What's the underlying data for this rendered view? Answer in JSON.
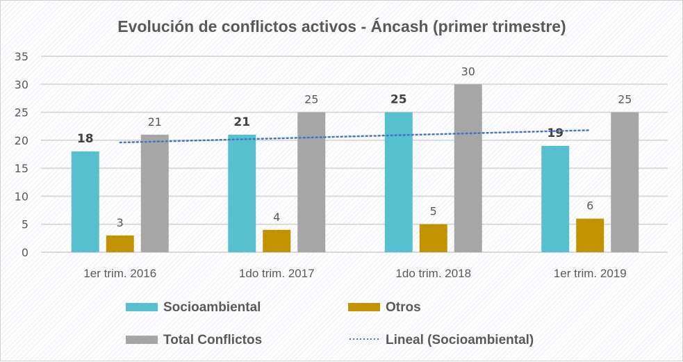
{
  "chart_data": {
    "type": "bar",
    "title": "Evolución de conflictos activos - Áncash (primer trimestre)",
    "xlabel": "",
    "ylabel": "",
    "ylim": [
      0,
      35
    ],
    "yticks": [
      0,
      5,
      10,
      15,
      20,
      25,
      30,
      35
    ],
    "grid": true,
    "categories": [
      "1er trim. 2016",
      "1do trim. 2017",
      "1do trim. 2018",
      "1er trim. 2019"
    ],
    "series": [
      {
        "name": "Socioambiental",
        "color": "#56C0CE",
        "values": [
          18,
          21,
          25,
          19
        ],
        "label_style": "bold"
      },
      {
        "name": "Otros",
        "color": "#C39200",
        "values": [
          3,
          4,
          5,
          6
        ],
        "label_style": "normal"
      },
      {
        "name": "Total Conflictos",
        "color": "#A6A6A6",
        "values": [
          21,
          25,
          30,
          25
        ],
        "label_style": "normal"
      }
    ],
    "trendline": {
      "name": "Lineal (Socioambiental)",
      "type": "linear",
      "color": "#4472C4",
      "style": "dotted",
      "start": 19.6,
      "end": 21.8
    },
    "legend": {
      "placement": "bottom",
      "items": [
        "Socioambiental",
        "Otros",
        "Total Conflictos",
        "Lineal (Socioambiental)"
      ]
    }
  }
}
